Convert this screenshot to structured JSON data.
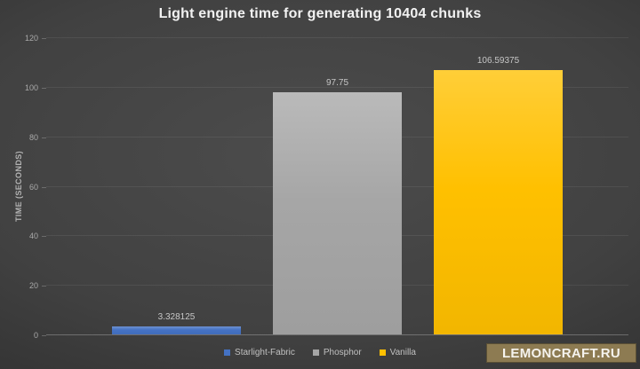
{
  "title": "Light engine time for generating 10404 chunks",
  "watermark": "LEMONCRAFT.RU",
  "chart_data": {
    "type": "bar",
    "title": "Light engine time for generating 10404 chunks",
    "categories": [
      "Starlight-Fabric",
      "Phosphor",
      "Vanilla"
    ],
    "values": [
      3.328125,
      97.75,
      106.59375
    ],
    "data_labels": [
      "3.328125",
      "97.75",
      "106.59375"
    ],
    "series_colors": [
      "#4472c4",
      "#a6a6a6",
      "#ffc000"
    ],
    "xlabel": "",
    "ylabel": "TIME (SECONDS)",
    "ylim": [
      0,
      120
    ],
    "yticks": [
      0,
      20,
      40,
      60,
      80,
      100,
      120
    ],
    "grid": true,
    "legend_position": "bottom",
    "legend": [
      {
        "label": "Starlight-Fabric",
        "color": "#4472c4"
      },
      {
        "label": "Phosphor",
        "color": "#a6a6a6"
      },
      {
        "label": "Vanilla",
        "color": "#ffc000"
      }
    ]
  }
}
